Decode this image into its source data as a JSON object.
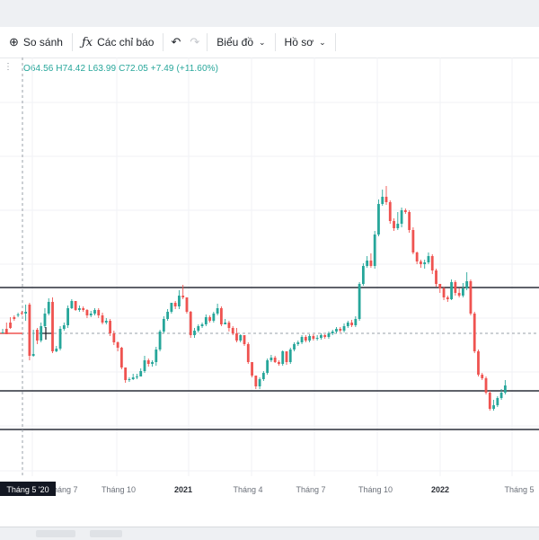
{
  "toolbar": {
    "compare_label": "So sánh",
    "indicators_label": "Các chỉ báo",
    "chart_label": "Biểu đồ",
    "profile_label": "Hồ sơ"
  },
  "ohlc": "O64.56  H74.42  L63.99  C72.05  +7.49 (+11.60%)",
  "colors": {
    "up": "#26a69a",
    "down": "#ef5350",
    "line": "#2a2e39"
  },
  "chart_data": {
    "type": "candlestick",
    "x_ticks": [
      {
        "label": "Tháng 7",
        "bold": false
      },
      {
        "label": "Tháng 10",
        "bold": false
      },
      {
        "label": "2021",
        "bold": true
      },
      {
        "label": "Tháng 4",
        "bold": false
      },
      {
        "label": "Tháng 7",
        "bold": false
      },
      {
        "label": "Tháng 10",
        "bold": false
      },
      {
        "label": "2022",
        "bold": true
      },
      {
        "label": "Tháng 5",
        "bold": false
      }
    ],
    "crosshair_label": "Tháng 5 '20",
    "candles": [
      [
        1,
        1,
        5,
        0
      ],
      [
        5,
        -1,
        12,
        0
      ],
      [
        12,
        6,
        18,
        5
      ],
      [
        18,
        16,
        20,
        14
      ],
      [
        20,
        21,
        23,
        18
      ],
      [
        23,
        22,
        25,
        20
      ],
      [
        22,
        24,
        32,
        14
      ],
      [
        32,
        -25,
        34,
        -30
      ],
      [
        -25,
        -23,
        4,
        -26
      ],
      [
        4,
        -8,
        6,
        -12
      ],
      [
        -8,
        8,
        12,
        -10
      ],
      [
        8,
        22,
        28,
        6
      ],
      [
        22,
        35,
        39,
        20
      ],
      [
        35,
        -20,
        40,
        -22
      ],
      [
        -20,
        -17,
        -14,
        -21
      ],
      [
        -17,
        5,
        8,
        -19
      ],
      [
        5,
        9,
        12,
        3
      ],
      [
        9,
        28,
        31,
        6
      ],
      [
        28,
        36,
        38,
        27
      ],
      [
        36,
        26,
        36,
        25
      ],
      [
        26,
        28,
        31,
        24
      ],
      [
        28,
        26,
        30,
        24
      ],
      [
        26,
        20,
        27,
        17
      ],
      [
        20,
        22,
        25,
        18
      ],
      [
        22,
        26,
        28,
        20
      ],
      [
        26,
        20,
        28,
        17
      ],
      [
        20,
        12,
        23,
        10
      ],
      [
        12,
        14,
        17,
        10
      ],
      [
        14,
        0,
        16,
        -3
      ],
      [
        0,
        -10,
        3,
        -13
      ],
      [
        -10,
        -16,
        -9,
        -20
      ],
      [
        -16,
        -38,
        -15,
        -40
      ],
      [
        -38,
        -52,
        -38,
        -55
      ],
      [
        -52,
        -51,
        -49,
        -54
      ],
      [
        -51,
        -49,
        -45,
        -52
      ],
      [
        -49,
        -48,
        -45,
        -51
      ],
      [
        -48,
        -42,
        -39,
        -44
      ],
      [
        -42,
        -30,
        -25,
        -44
      ],
      [
        -30,
        -34,
        -28,
        -37
      ],
      [
        -34,
        -32,
        -30,
        -37
      ],
      [
        -32,
        -18,
        -15,
        -36
      ],
      [
        -18,
        2,
        4,
        -20
      ],
      [
        2,
        16,
        19,
        0
      ],
      [
        16,
        24,
        27,
        14
      ],
      [
        24,
        34,
        34,
        22
      ],
      [
        34,
        30,
        36,
        27
      ],
      [
        30,
        42,
        48,
        27
      ],
      [
        42,
        40,
        54,
        38
      ],
      [
        40,
        24,
        38,
        22
      ],
      [
        24,
        -2,
        25,
        -5
      ],
      [
        -2,
        3,
        6,
        -5
      ],
      [
        3,
        8,
        10,
        1
      ],
      [
        8,
        10,
        12,
        6
      ],
      [
        10,
        18,
        21,
        8
      ],
      [
        18,
        14,
        20,
        12
      ],
      [
        14,
        22,
        24,
        12
      ],
      [
        22,
        28,
        33,
        20
      ],
      [
        28,
        10,
        30,
        8
      ],
      [
        10,
        12,
        16,
        10
      ],
      [
        12,
        6,
        14,
        2
      ],
      [
        6,
        0,
        8,
        -2
      ],
      [
        0,
        -8,
        6,
        -10
      ],
      [
        -8,
        -2,
        -1,
        -10
      ],
      [
        -2,
        -12,
        -2,
        -14
      ],
      [
        -12,
        -32,
        -10,
        -34
      ],
      [
        -32,
        -47,
        -32,
        -49
      ],
      [
        -47,
        -59,
        -47,
        -62
      ],
      [
        -59,
        -51,
        -49,
        -62
      ],
      [
        -51,
        -44,
        -42,
        -53
      ],
      [
        -44,
        -30,
        -28,
        -46
      ],
      [
        -30,
        -27,
        -24,
        -32
      ],
      [
        -27,
        -32,
        -25,
        -33
      ],
      [
        -32,
        -34,
        -30,
        -36
      ],
      [
        -34,
        -20,
        -19,
        -36
      ],
      [
        -20,
        -32,
        -20,
        -35
      ],
      [
        -32,
        -18,
        -16,
        -34
      ],
      [
        -18,
        -12,
        -10,
        -20
      ],
      [
        -12,
        -10,
        -8,
        -14
      ],
      [
        -10,
        -4,
        -2,
        -12
      ],
      [
        -4,
        -8,
        -2,
        -10
      ],
      [
        -8,
        -3,
        -1,
        -10
      ],
      [
        -3,
        -6,
        -1,
        -8
      ],
      [
        -6,
        -5,
        -2,
        -8
      ],
      [
        -5,
        -2,
        0,
        -7
      ],
      [
        -2,
        -4,
        -1,
        -6
      ],
      [
        -4,
        0,
        2,
        -6
      ],
      [
        0,
        2,
        4,
        -2
      ],
      [
        2,
        5,
        7,
        0
      ],
      [
        5,
        3,
        7,
        1
      ],
      [
        3,
        8,
        11,
        1
      ],
      [
        8,
        12,
        14,
        6
      ],
      [
        12,
        9,
        15,
        7
      ],
      [
        9,
        16,
        19,
        7
      ],
      [
        16,
        55,
        57,
        14
      ],
      [
        55,
        75,
        78,
        53
      ],
      [
        75,
        81,
        86,
        73
      ],
      [
        81,
        75,
        89,
        73
      ],
      [
        75,
        110,
        114,
        72
      ],
      [
        110,
        144,
        149,
        108
      ],
      [
        144,
        152,
        160,
        142
      ],
      [
        152,
        146,
        164,
        143
      ],
      [
        146,
        125,
        148,
        122
      ],
      [
        125,
        117,
        128,
        114
      ],
      [
        117,
        122,
        135,
        115
      ],
      [
        122,
        137,
        140,
        118
      ],
      [
        137,
        135,
        139,
        133
      ],
      [
        135,
        115,
        137,
        112
      ],
      [
        115,
        90,
        118,
        88
      ],
      [
        90,
        80,
        91,
        77
      ],
      [
        80,
        77,
        82,
        73
      ],
      [
        77,
        79,
        82,
        72
      ],
      [
        79,
        86,
        90,
        77
      ],
      [
        86,
        70,
        88,
        66
      ],
      [
        70,
        55,
        72,
        52
      ],
      [
        55,
        50,
        54,
        45
      ],
      [
        50,
        40,
        52,
        37
      ],
      [
        40,
        38,
        42,
        35
      ],
      [
        38,
        57,
        60,
        37
      ],
      [
        57,
        45,
        59,
        42
      ],
      [
        45,
        42,
        50,
        40
      ],
      [
        42,
        50,
        56,
        40
      ],
      [
        50,
        58,
        68,
        48
      ],
      [
        58,
        22,
        60,
        20
      ],
      [
        22,
        -20,
        24,
        -22
      ],
      [
        -20,
        -46,
        -18,
        -48
      ],
      [
        -46,
        -50,
        -44,
        -52
      ],
      [
        -50,
        -66,
        -48,
        -68
      ],
      [
        -66,
        -84,
        -64,
        -86
      ],
      [
        -84,
        -80,
        -74,
        -86
      ],
      [
        -80,
        -72,
        -70,
        -82
      ],
      [
        -72,
        -66,
        -62,
        -74
      ],
      [
        -66,
        -58,
        -52,
        -68
      ]
    ],
    "resistance_level": "upper horizontal line",
    "support_levels": [
      "middle horizontal line",
      "lower horizontal line"
    ]
  }
}
